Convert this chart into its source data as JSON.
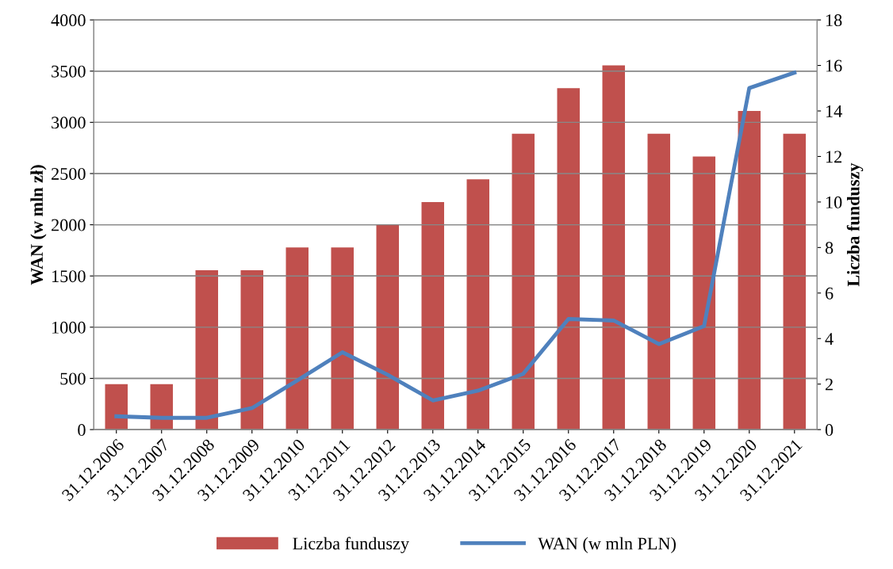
{
  "chart_data": {
    "type": "bar",
    "categories": [
      "31.12.2006",
      "31.12.2007",
      "31.12.2008",
      "31.12.2009",
      "31.12.2010",
      "31.12.2011",
      "31.12.2012",
      "31.12.2013",
      "31.12.2014",
      "31.12.2015",
      "31.12.2016",
      "31.12.2017",
      "31.12.2018",
      "31.12.2019",
      "31.12.2020",
      "31.12.2021"
    ],
    "series": [
      {
        "name": "Liczba funduszy",
        "axis": "y2",
        "color": "#c0504d",
        "values": [
          2,
          2,
          7,
          7,
          8,
          8,
          9,
          10,
          11,
          13,
          15,
          16,
          13,
          12,
          14,
          13
        ]
      },
      {
        "name": "WAN (w mln PLN)",
        "type": "line",
        "color": "#4f81bd",
        "values": [
          130,
          115,
          115,
          210,
          480,
          755,
          535,
          285,
          380,
          545,
          1080,
          1065,
          835,
          1010,
          3335,
          3485
        ]
      }
    ],
    "ylabel": "WAN (w mln zł)",
    "y2label": "Liczba funduszy",
    "ylim": [
      0,
      4000
    ],
    "yticks": [
      0,
      500,
      1000,
      1500,
      2000,
      2500,
      3000,
      3500,
      4000
    ],
    "y2lim": [
      0,
      18
    ],
    "y2ticks": [
      0,
      2,
      4,
      6,
      8,
      10,
      12,
      14,
      16,
      18
    ],
    "grid": "y",
    "legend": "bottom",
    "marker": "none",
    "line_style": "solid"
  }
}
